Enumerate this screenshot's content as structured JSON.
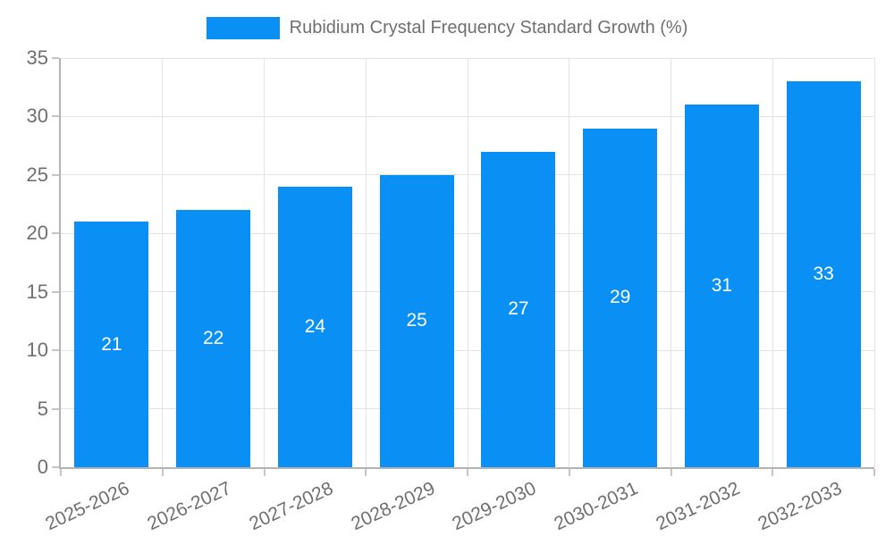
{
  "legend": {
    "label": "Rubidium Crystal Frequency Standard Growth (%)"
  },
  "chart_data": {
    "type": "bar",
    "title": "Rubidium Crystal Frequency Standard Growth (%)",
    "categories": [
      "2025-2026",
      "2026-2027",
      "2027-2028",
      "2028-2029",
      "2029-2030",
      "2030-2031",
      "2031-2032",
      "2032-2033"
    ],
    "values": [
      21,
      22,
      24,
      25,
      27,
      29,
      31,
      33
    ],
    "xlabel": "",
    "ylabel": "",
    "ylim": [
      0,
      35
    ],
    "yticks": [
      0,
      5,
      10,
      15,
      20,
      25,
      30,
      35
    ],
    "grid": true,
    "legend_position": "top-center",
    "bar_labels_inside": true,
    "x_label_rotation_deg": 25
  },
  "colors": {
    "bar": "#0a90f5",
    "grid": "#e3e3e3",
    "axis": "#b3b3b3",
    "text": "#6f6f6f",
    "bar_label": "#ffffff"
  }
}
